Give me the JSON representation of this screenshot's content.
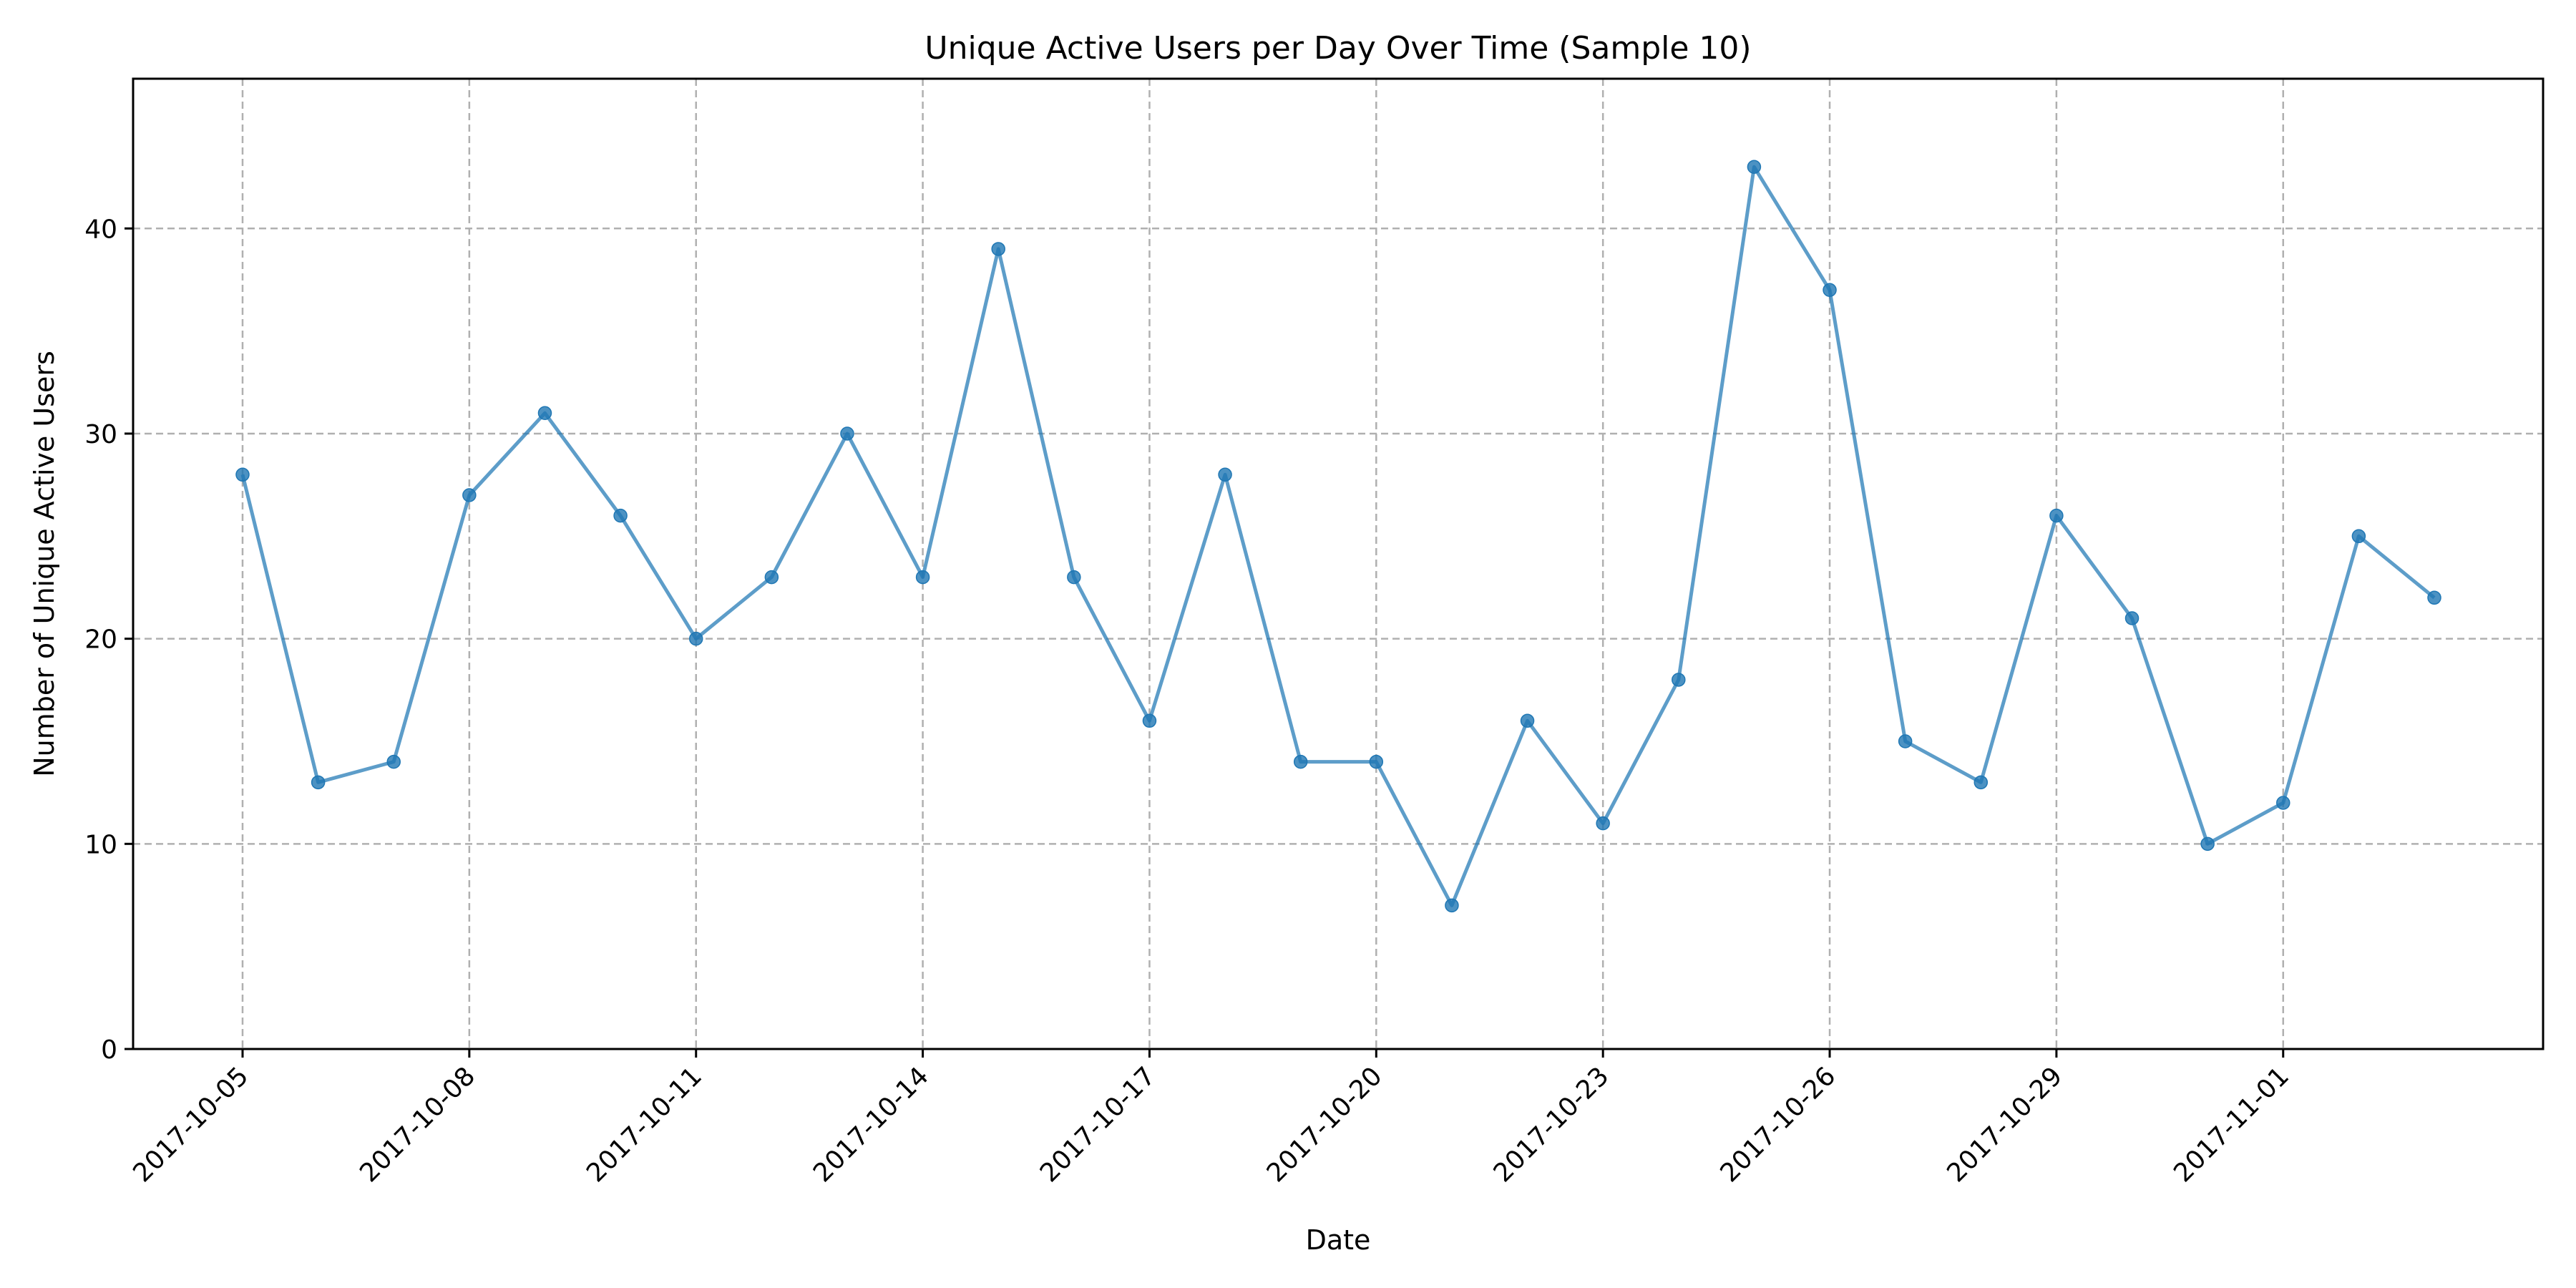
{
  "chart_data": {
    "type": "line",
    "title": "Unique Active Users per Day Over Time (Sample 10)",
    "xlabel": "Date",
    "ylabel": "Number of Unique Active Users",
    "ylim": [
      0,
      47.3
    ],
    "yticks": [
      0,
      10,
      20,
      30,
      40
    ],
    "xticks": [
      "2017-10-05",
      "2017-10-08",
      "2017-10-11",
      "2017-10-14",
      "2017-10-17",
      "2017-10-20",
      "2017-10-23",
      "2017-10-26",
      "2017-10-29",
      "2017-11-01"
    ],
    "grid": true,
    "color": "#1f77b4",
    "series": [
      {
        "name": "Unique Active Users",
        "x": [
          "2017-10-05",
          "2017-10-06",
          "2017-10-07",
          "2017-10-08",
          "2017-10-09",
          "2017-10-10",
          "2017-10-11",
          "2017-10-12",
          "2017-10-13",
          "2017-10-14",
          "2017-10-15",
          "2017-10-16",
          "2017-10-17",
          "2017-10-18",
          "2017-10-19",
          "2017-10-20",
          "2017-10-21",
          "2017-10-22",
          "2017-10-23",
          "2017-10-24",
          "2017-10-25",
          "2017-10-26",
          "2017-10-27",
          "2017-10-28",
          "2017-10-29",
          "2017-10-30",
          "2017-10-31",
          "2017-11-01",
          "2017-11-02",
          "2017-11-03"
        ],
        "values": [
          28,
          13,
          14,
          27,
          31,
          26,
          20,
          23,
          30,
          23,
          39,
          23,
          16,
          28,
          14,
          14,
          7,
          16,
          11,
          18,
          43,
          37,
          15,
          13,
          26,
          21,
          10,
          12,
          25,
          22
        ]
      }
    ]
  }
}
